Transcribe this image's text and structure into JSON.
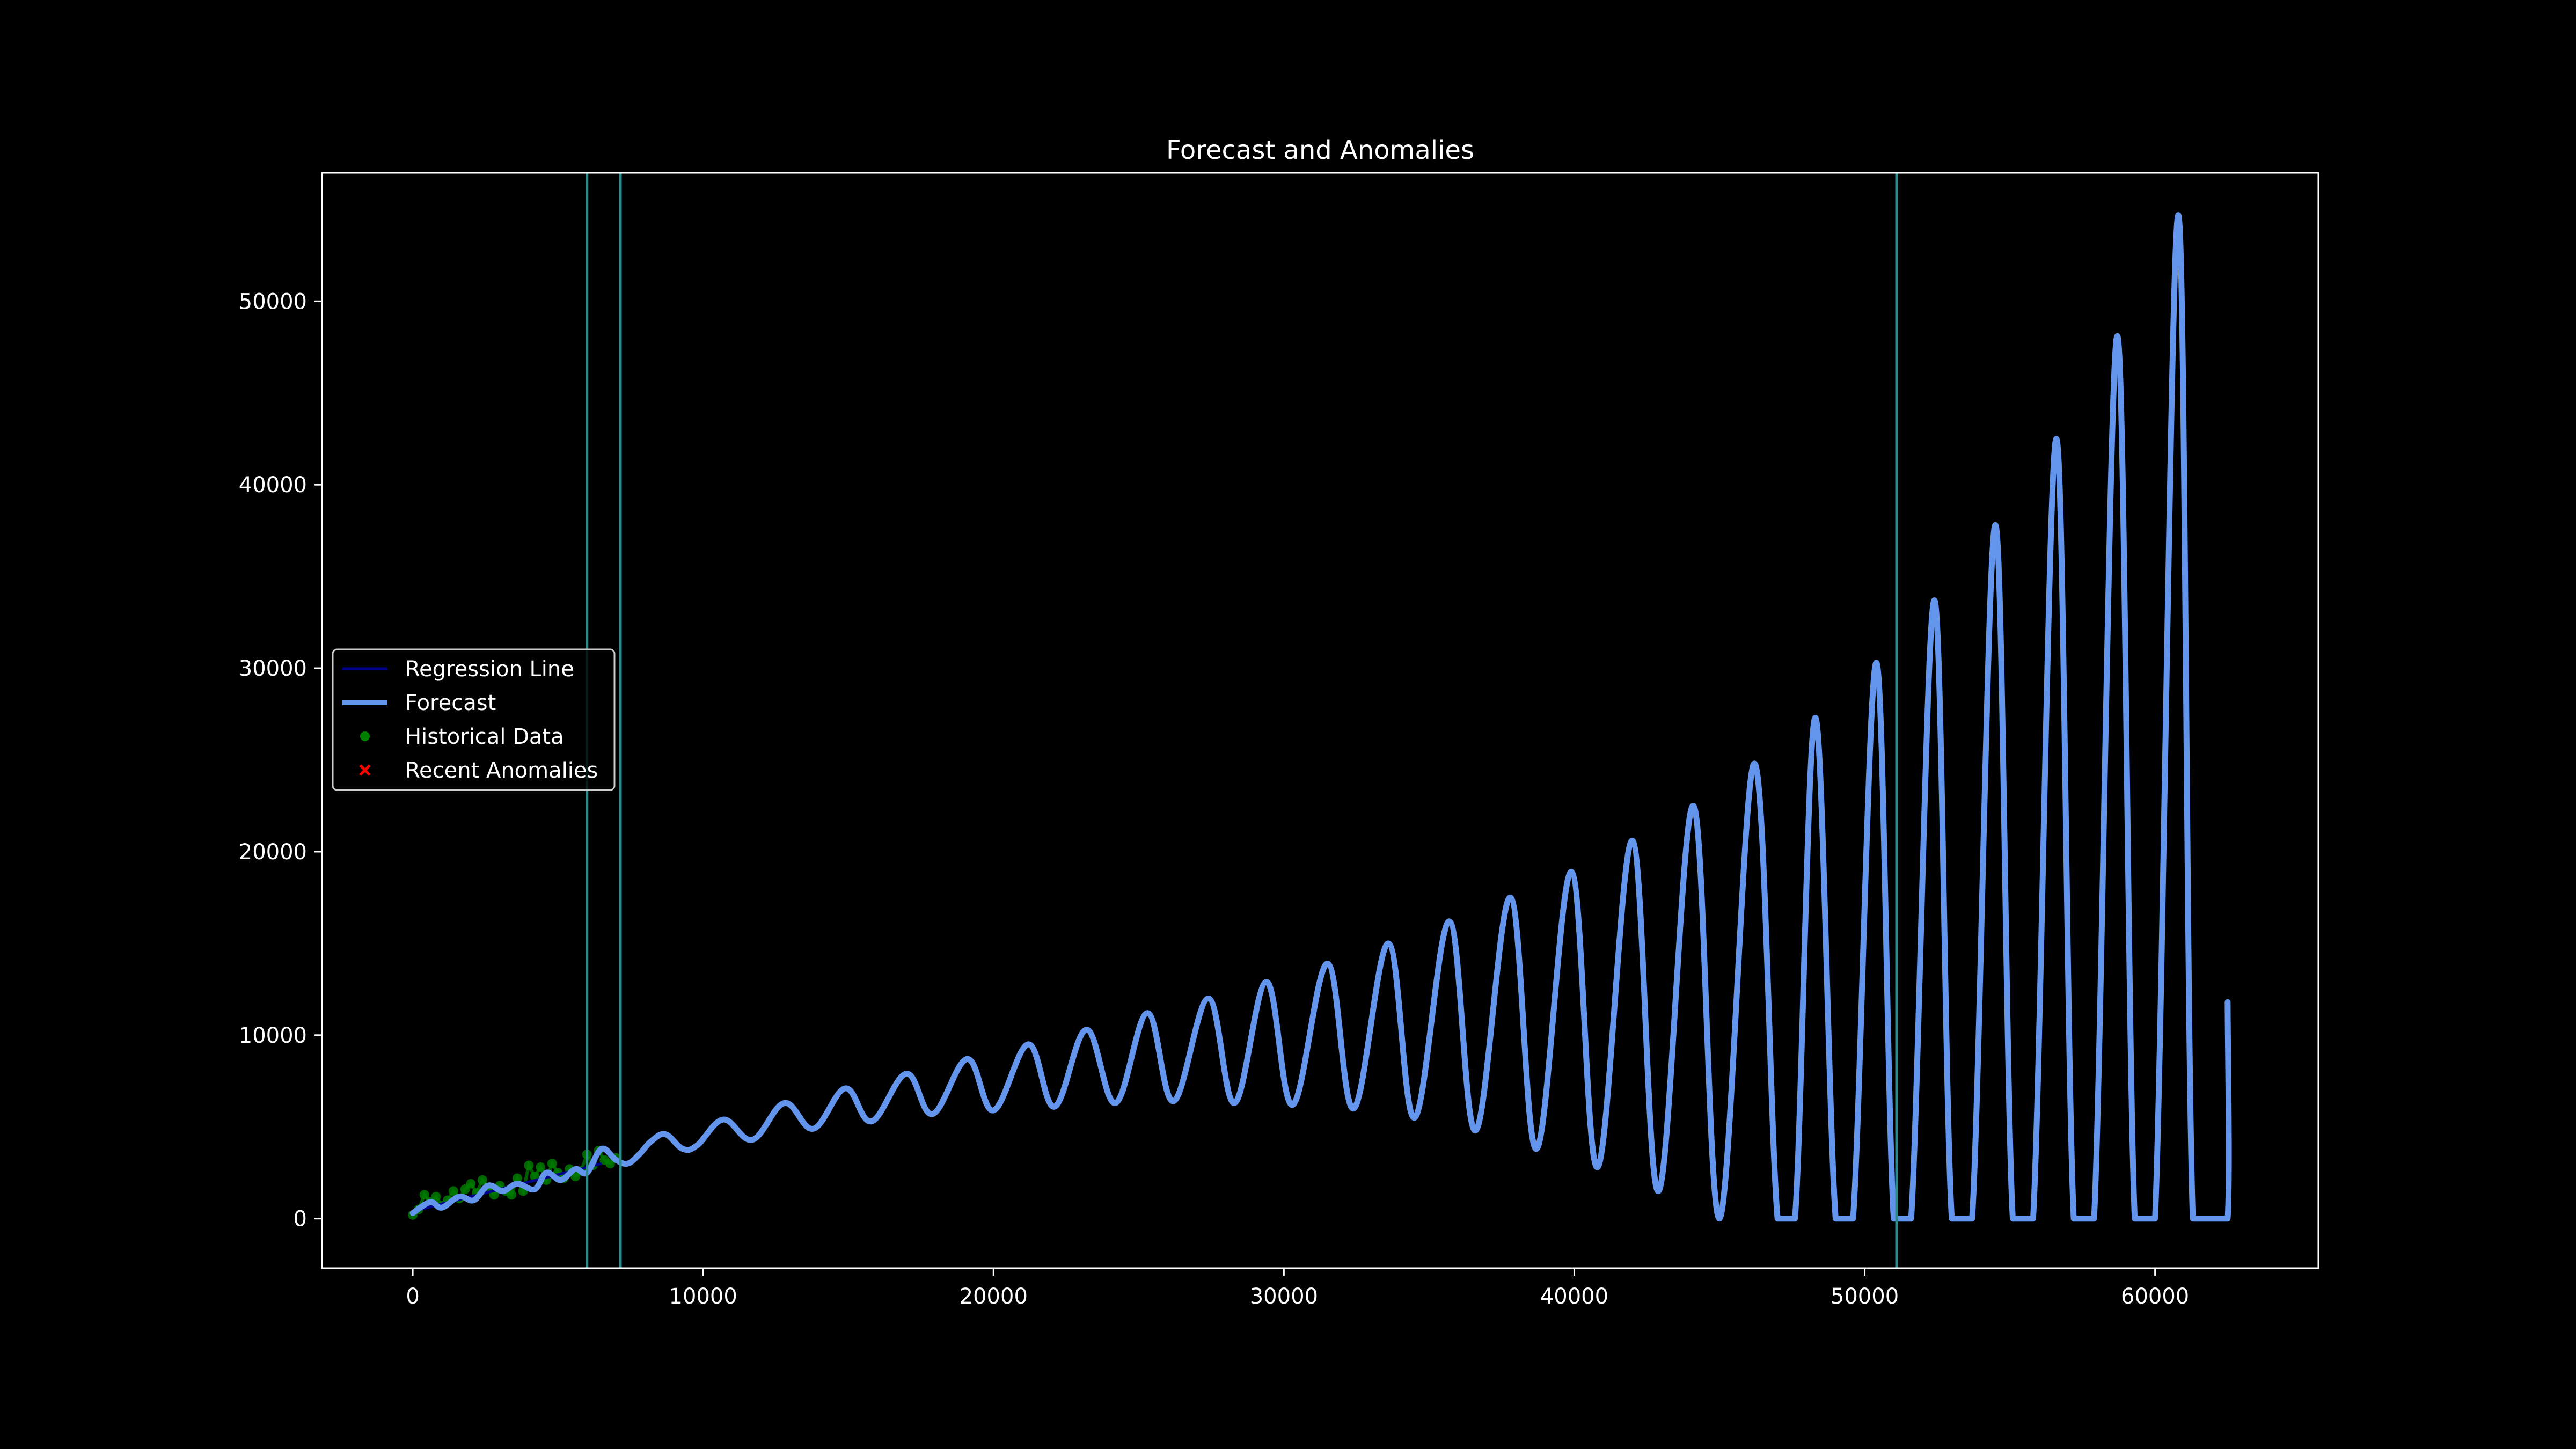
{
  "chart_data": {
    "type": "line",
    "title": "Forecast and Anomalies",
    "xlabel": "",
    "ylabel": "",
    "xlim": [
      -3125,
      65625
    ],
    "ylim": [
      -2700,
      57000
    ],
    "x_ticks": [
      0,
      10000,
      20000,
      30000,
      40000,
      50000,
      60000
    ],
    "y_ticks": [
      0,
      10000,
      20000,
      30000,
      40000,
      50000
    ],
    "grid": false,
    "background": "#000000",
    "axes_color": "#ffffff",
    "legend_position": "center-left",
    "legend": [
      {
        "label": "Regression Line",
        "color": "#00008b",
        "marker": "line"
      },
      {
        "label": "Forecast",
        "color": "#6495ed",
        "marker": "thick-line"
      },
      {
        "label": "Historical Data",
        "color": "#008000",
        "marker": "dot"
      },
      {
        "label": "Recent Anomalies",
        "color": "#ff0000",
        "marker": "x"
      }
    ],
    "vertical_lines": {
      "color": "#2e8b8b",
      "x": [
        6000,
        7150,
        51100
      ]
    },
    "series": [
      {
        "name": "Regression Line",
        "color": "#00008b",
        "x": [
          0,
          6500
        ],
        "y": [
          400,
          3000
        ]
      },
      {
        "name": "Forecast",
        "color": "#6495ed",
        "x": [
          0,
          600,
          1000,
          1600,
          2100,
          2600,
          3100,
          3600,
          4200,
          4600,
          5100,
          5600,
          6000,
          6500,
          7000,
          7400,
          7800,
          8200,
          8700,
          9300,
          9800,
          10700,
          11700,
          12800,
          13800,
          14900,
          15800,
          17000,
          17900,
          19100,
          20000,
          21200,
          22100,
          23200,
          24200,
          25300,
          26200,
          27400,
          28300,
          29400,
          30300,
          31500,
          32400,
          33600,
          34500,
          35700,
          36600,
          37800,
          38700,
          39900,
          40800,
          42000,
          42900,
          44100,
          45000,
          46200,
          47000,
          47600,
          48300,
          49000,
          49600,
          50400,
          51000,
          51600,
          52400,
          53000,
          53700,
          54500,
          55100,
          55800,
          56600,
          57200,
          57900,
          58700,
          59300,
          60000,
          60800,
          61300,
          62000,
          62500,
          62500
        ],
        "y": [
          300,
          900,
          600,
          1200,
          1000,
          1800,
          1500,
          1900,
          1600,
          2500,
          2100,
          2700,
          2500,
          3800,
          3200,
          3000,
          3500,
          4200,
          4600,
          3800,
          4000,
          5400,
          4300,
          6300,
          4900,
          7100,
          5300,
          7900,
          5700,
          8700,
          5900,
          9500,
          6100,
          10300,
          6300,
          11200,
          6400,
          12000,
          6300,
          12900,
          6200,
          13900,
          6000,
          15000,
          5500,
          16200,
          4800,
          17500,
          3800,
          18900,
          2800,
          20600,
          1500,
          22500,
          0,
          24800,
          0,
          0,
          27300,
          0,
          0,
          30300,
          0,
          0,
          33700,
          0,
          0,
          37800,
          0,
          0,
          42500,
          0,
          0,
          48100,
          0,
          0,
          54700,
          0,
          0,
          0,
          11800
        ]
      },
      {
        "name": "Historical Data",
        "color": "#008000",
        "x": [
          0,
          200,
          400,
          600,
          800,
          1000,
          1200,
          1400,
          1600,
          1800,
          2000,
          2200,
          2400,
          2600,
          2800,
          3000,
          3200,
          3400,
          3600,
          3800,
          4000,
          4200,
          4400,
          4600,
          4800,
          5000,
          5200,
          5400,
          5600,
          5800,
          6000,
          6200,
          6400,
          6600,
          6800,
          7000
        ],
        "y": [
          200,
          500,
          1300,
          900,
          1200,
          700,
          1000,
          1500,
          1100,
          1600,
          1900,
          1400,
          2100,
          1700,
          1300,
          1800,
          1500,
          1300,
          2200,
          1500,
          2900,
          2300,
          2800,
          2100,
          3000,
          2500,
          2200,
          2700,
          2300,
          2600,
          3500,
          2900,
          3700,
          3200,
          3000,
          3300
        ]
      },
      {
        "name": "Recent Anomalies",
        "color": "#ff0000",
        "x": [],
        "y": []
      }
    ]
  }
}
